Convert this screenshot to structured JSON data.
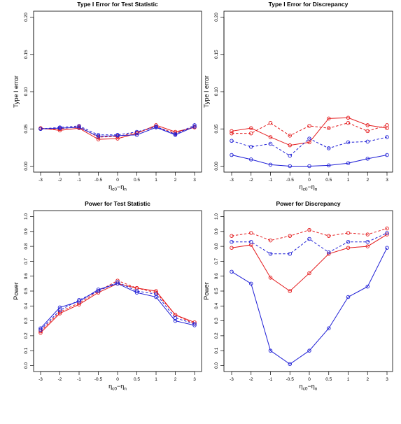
{
  "colors": {
    "red": "#e41a1c",
    "blue": "#1f1fd6"
  },
  "chart_data": [
    {
      "type": "line",
      "title": "Type I Error for Test Statistic",
      "xlabel_main": "η",
      "xlabel_sub1": "c0",
      "xlabel_mid": "−η",
      "xlabel_sub2": "n",
      "ylabel": "Type I error",
      "x": [
        -3,
        -2,
        -1,
        -0.5,
        0,
        0.5,
        1,
        2,
        3
      ],
      "x_tick_labels": [
        "-3",
        "-2",
        "-1",
        "-0.5",
        "0",
        "0.5",
        "1",
        "2",
        "3"
      ],
      "ylim": [
        0,
        0.2
      ],
      "y_ticks": [
        0.0,
        0.05,
        0.1,
        0.15,
        0.2
      ],
      "y_tick_labels": [
        "0.00",
        "0.05",
        "0.10",
        "0.15",
        "0.20"
      ],
      "series": [
        {
          "color": "red",
          "dash": false,
          "values": [
            0.051,
            0.048,
            0.051,
            0.036,
            0.037,
            0.044,
            0.055,
            0.046,
            0.052
          ]
        },
        {
          "color": "red",
          "dash": true,
          "values": [
            0.05,
            0.05,
            0.053,
            0.039,
            0.04,
            0.045,
            0.053,
            0.044,
            0.053
          ]
        },
        {
          "color": "blue",
          "dash": false,
          "values": [
            0.05,
            0.051,
            0.052,
            0.04,
            0.041,
            0.042,
            0.052,
            0.042,
            0.053
          ]
        },
        {
          "color": "blue",
          "dash": true,
          "values": [
            0.05,
            0.052,
            0.054,
            0.042,
            0.042,
            0.046,
            0.053,
            0.043,
            0.055
          ]
        }
      ]
    },
    {
      "type": "line",
      "title": "Type I Error for Discrepancy",
      "xlabel_main": "η",
      "xlabel_sub1": "c0",
      "xlabel_mid": "−η",
      "xlabel_sub2": "n",
      "ylabel": "Type I error",
      "x": [
        -3,
        -2,
        -1,
        -0.5,
        0,
        0.5,
        1,
        2,
        3
      ],
      "x_tick_labels": [
        "-3",
        "-2",
        "-1",
        "-0.5",
        "0",
        "0.5",
        "1",
        "2",
        "3"
      ],
      "ylim": [
        0,
        0.2
      ],
      "y_ticks": [
        0.0,
        0.05,
        0.1,
        0.15,
        0.2
      ],
      "y_tick_labels": [
        "0.00",
        "0.05",
        "0.10",
        "0.15",
        "0.20"
      ],
      "series": [
        {
          "color": "red",
          "dash": false,
          "values": [
            0.047,
            0.051,
            0.039,
            0.028,
            0.032,
            0.064,
            0.065,
            0.055,
            0.051
          ]
        },
        {
          "color": "red",
          "dash": true,
          "values": [
            0.044,
            0.044,
            0.058,
            0.041,
            0.054,
            0.051,
            0.058,
            0.047,
            0.055
          ]
        },
        {
          "color": "blue",
          "dash": false,
          "values": [
            0.015,
            0.009,
            0.002,
            0.0,
            0.0,
            0.001,
            0.004,
            0.01,
            0.015
          ]
        },
        {
          "color": "blue",
          "dash": true,
          "values": [
            0.034,
            0.026,
            0.03,
            0.014,
            0.037,
            0.024,
            0.032,
            0.033,
            0.039
          ]
        }
      ]
    },
    {
      "type": "line",
      "title": "Power for Test Statistic",
      "xlabel_main": "η",
      "xlabel_sub1": "c0",
      "xlabel_mid": "−η",
      "xlabel_sub2": "n",
      "ylabel": "Power",
      "x": [
        -3,
        -2,
        -1,
        -0.5,
        0,
        0.5,
        1,
        2,
        3
      ],
      "x_tick_labels": [
        "-3",
        "-2",
        "-1",
        "-0.5",
        "0",
        "0.5",
        "1",
        "2",
        "3"
      ],
      "ylim": [
        0,
        1.0
      ],
      "y_ticks": [
        0.0,
        0.1,
        0.2,
        0.3,
        0.4,
        0.5,
        0.6,
        0.7,
        0.8,
        0.9,
        1.0
      ],
      "y_tick_labels": [
        "0.0",
        "0.1",
        "0.2",
        "0.3",
        "0.4",
        "0.5",
        "0.6",
        "0.7",
        "0.8",
        "0.9",
        "1.0"
      ],
      "series": [
        {
          "color": "red",
          "dash": false,
          "values": [
            0.22,
            0.35,
            0.41,
            0.49,
            0.55,
            0.52,
            0.5,
            0.34,
            0.29
          ]
        },
        {
          "color": "red",
          "dash": true,
          "values": [
            0.23,
            0.36,
            0.42,
            0.5,
            0.57,
            0.52,
            0.49,
            0.34,
            0.28
          ]
        },
        {
          "color": "blue",
          "dash": false,
          "values": [
            0.25,
            0.39,
            0.43,
            0.51,
            0.55,
            0.49,
            0.46,
            0.3,
            0.27
          ]
        },
        {
          "color": "blue",
          "dash": true,
          "values": [
            0.24,
            0.37,
            0.44,
            0.5,
            0.56,
            0.5,
            0.48,
            0.32,
            0.28
          ]
        }
      ]
    },
    {
      "type": "line",
      "title": "Power for Discrepancy",
      "xlabel_main": "η",
      "xlabel_sub1": "c0",
      "xlabel_mid": "−η",
      "xlabel_sub2": "n",
      "ylabel": "Power",
      "x": [
        -3,
        -2,
        -1,
        -0.5,
        0,
        0.5,
        1,
        2,
        3
      ],
      "x_tick_labels": [
        "-3",
        "-2",
        "-1",
        "-0.5",
        "0",
        "0.5",
        "1",
        "2",
        "3"
      ],
      "ylim": [
        0,
        1.0
      ],
      "y_ticks": [
        0.0,
        0.1,
        0.2,
        0.3,
        0.4,
        0.5,
        0.6,
        0.7,
        0.8,
        0.9,
        1.0
      ],
      "y_tick_labels": [
        "0.0",
        "0.1",
        "0.2",
        "0.3",
        "0.4",
        "0.5",
        "0.6",
        "0.7",
        "0.8",
        "0.9",
        "1.0"
      ],
      "series": [
        {
          "color": "red",
          "dash": false,
          "values": [
            0.79,
            0.81,
            0.59,
            0.5,
            0.62,
            0.75,
            0.79,
            0.8,
            0.88
          ]
        },
        {
          "color": "red",
          "dash": true,
          "values": [
            0.87,
            0.89,
            0.84,
            0.87,
            0.91,
            0.87,
            0.89,
            0.88,
            0.92
          ]
        },
        {
          "color": "blue",
          "dash": false,
          "values": [
            0.63,
            0.55,
            0.1,
            0.01,
            0.1,
            0.25,
            0.46,
            0.53,
            0.79
          ]
        },
        {
          "color": "blue",
          "dash": true,
          "values": [
            0.83,
            0.83,
            0.75,
            0.75,
            0.85,
            0.76,
            0.83,
            0.83,
            0.89
          ]
        }
      ]
    }
  ]
}
